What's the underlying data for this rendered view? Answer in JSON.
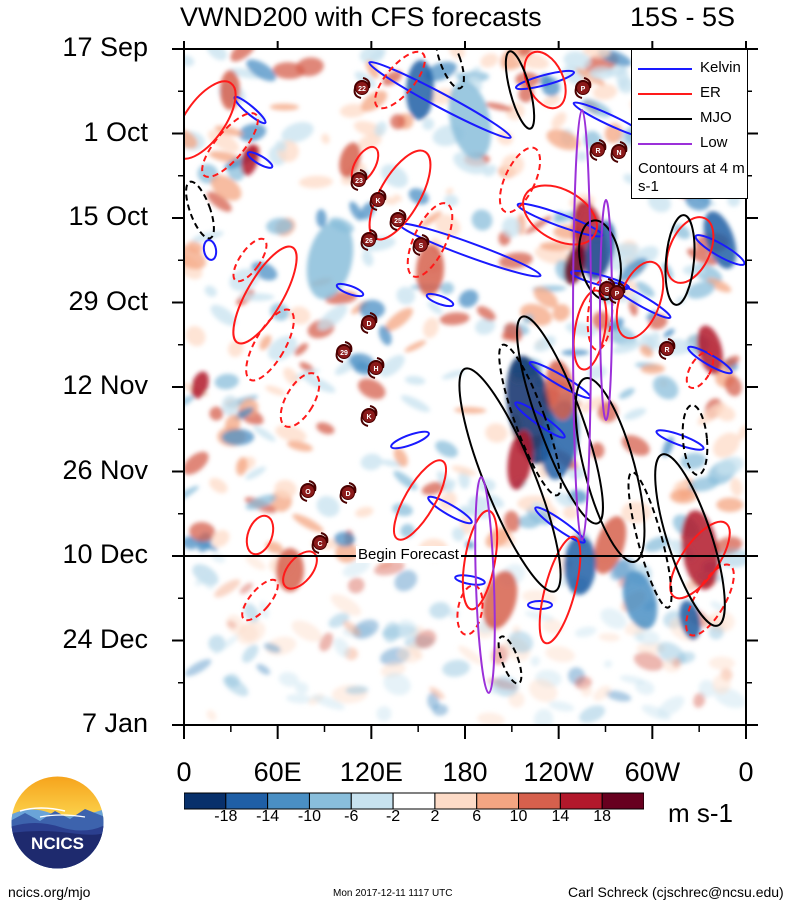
{
  "chart_data": {
    "type": "heatmap",
    "title": "VWND200 with CFS forecasts",
    "region": "15S - 5S",
    "y_tick_labels": [
      "17 Sep",
      "1 Oct",
      "15 Oct",
      "29 Oct",
      "12 Nov",
      "26 Nov",
      "10 Dec",
      "24 Dec",
      "7 Jan"
    ],
    "x_tick_labels": [
      "0",
      "60E",
      "120E",
      "180",
      "120W",
      "60W",
      "0"
    ],
    "x_range_deg": [
      0,
      360
    ],
    "time_range": [
      "17 Sep",
      "7 Jan"
    ],
    "colorbar": {
      "tick_labels": [
        "-18",
        "-14",
        "-10",
        "-6",
        "-2",
        "2",
        "6",
        "10",
        "14",
        "18"
      ],
      "units": "m s-1",
      "colors": [
        "#08306b",
        "#1f5fa6",
        "#4a8fc4",
        "#89bedb",
        "#c7e2ef",
        "#ffffff",
        "#fddbc7",
        "#f4a582",
        "#d6604d",
        "#b2182b",
        "#67001f"
      ]
    },
    "legend": {
      "entries": [
        {
          "name": "Kelvin",
          "color": "#1a1aff"
        },
        {
          "name": "ER",
          "color": "#ff1a1a"
        },
        {
          "name": "MJO",
          "color": "#000000"
        },
        {
          "name": "Low",
          "color": "#9b30d9"
        }
      ],
      "note": "Contours at 4 m s-1",
      "placement": "top-right"
    },
    "forecast_line_label": "Begin Forecast",
    "forecast_start": "10 Dec",
    "storm_markers": [
      "22",
      "P",
      "R",
      "N",
      "23",
      "K",
      "25",
      "26",
      "S",
      "S",
      "P",
      "D",
      "29",
      "H",
      "R",
      "K",
      "O",
      "D",
      "C"
    ]
  },
  "footer": {
    "url": "ncics.org/mjo",
    "timestamp": "Mon 2017-12-11 1117 UTC",
    "author": "Carl Schreck (cjschrec@ncsu.edu)"
  },
  "logo": {
    "text": "NCICS"
  }
}
